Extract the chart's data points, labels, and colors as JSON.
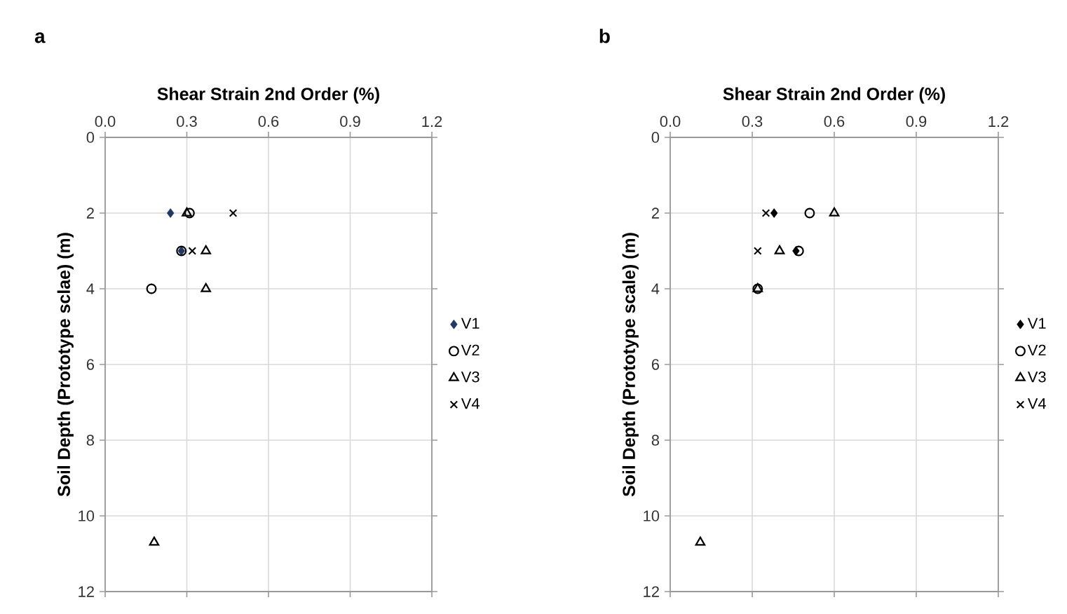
{
  "chart_data": [
    {
      "type": "scatter",
      "title": "a",
      "xlabel": "Shear Strain 2nd Order (%)",
      "ylabel": "Soil Depth (Prototype sclae) (m)",
      "xlim": [
        0,
        1.2
      ],
      "xticks": [
        {
          "value": 0,
          "label": "0.0"
        },
        {
          "value": 0.3,
          "label": "0.3"
        },
        {
          "value": 0.6,
          "label": "0.6"
        },
        {
          "value": 0.9,
          "label": "0.9"
        },
        {
          "value": 1.2,
          "label": "1.2"
        }
      ],
      "ylim": [
        12,
        0
      ],
      "yticks": [
        0,
        2,
        4,
        6,
        8,
        10,
        12
      ],
      "grid": true,
      "legend": "right",
      "series": [
        {
          "name": "V1",
          "color": "#1f3864",
          "marker": "diamond",
          "x": [
            0.24,
            0.28
          ],
          "values": [
            2,
            3
          ]
        },
        {
          "name": "V2",
          "color": "#000000",
          "marker": "circle",
          "x": [
            0.31,
            0.28,
            0.17
          ],
          "values": [
            2,
            3,
            4
          ]
        },
        {
          "name": "V3",
          "color": "#000000",
          "marker": "triangle",
          "x": [
            0.3,
            0.37,
            0.37,
            0.18
          ],
          "values": [
            2,
            3,
            4,
            10.7
          ]
        },
        {
          "name": "V4",
          "color": "#000000",
          "marker": "cross",
          "x": [
            0.47,
            0.32
          ],
          "values": [
            2,
            3
          ]
        }
      ]
    },
    {
      "type": "scatter",
      "title": "b",
      "xlabel": "Shear Strain 2nd Order (%)",
      "ylabel": "Soil Depth (Prototype scale) (m)",
      "xlim": [
        0,
        1.2
      ],
      "xticks": [
        {
          "value": 0,
          "label": "0.0"
        },
        {
          "value": 0.3,
          "label": "0.3"
        },
        {
          "value": 0.6,
          "label": "0.6"
        },
        {
          "value": 0.9,
          "label": "0.9"
        },
        {
          "value": 1.2,
          "label": "1.2"
        }
      ],
      "ylim": [
        12,
        0
      ],
      "yticks": [
        0,
        2,
        4,
        6,
        8,
        10,
        12
      ],
      "grid": true,
      "legend": "right",
      "series": [
        {
          "name": "V1",
          "color": "#000000",
          "marker": "diamond",
          "x": [
            0.38,
            0.46
          ],
          "values": [
            2,
            3
          ]
        },
        {
          "name": "V2",
          "color": "#000000",
          "marker": "circle",
          "x": [
            0.51,
            0.47,
            0.32
          ],
          "values": [
            2,
            3,
            4
          ]
        },
        {
          "name": "V3",
          "color": "#000000",
          "marker": "triangle",
          "x": [
            0.6,
            0.4,
            0.32,
            0.11
          ],
          "values": [
            2,
            3,
            4,
            10.7
          ]
        },
        {
          "name": "V4",
          "color": "#000000",
          "marker": "cross",
          "x": [
            0.35,
            0.32
          ],
          "values": [
            2,
            3
          ]
        }
      ]
    }
  ]
}
